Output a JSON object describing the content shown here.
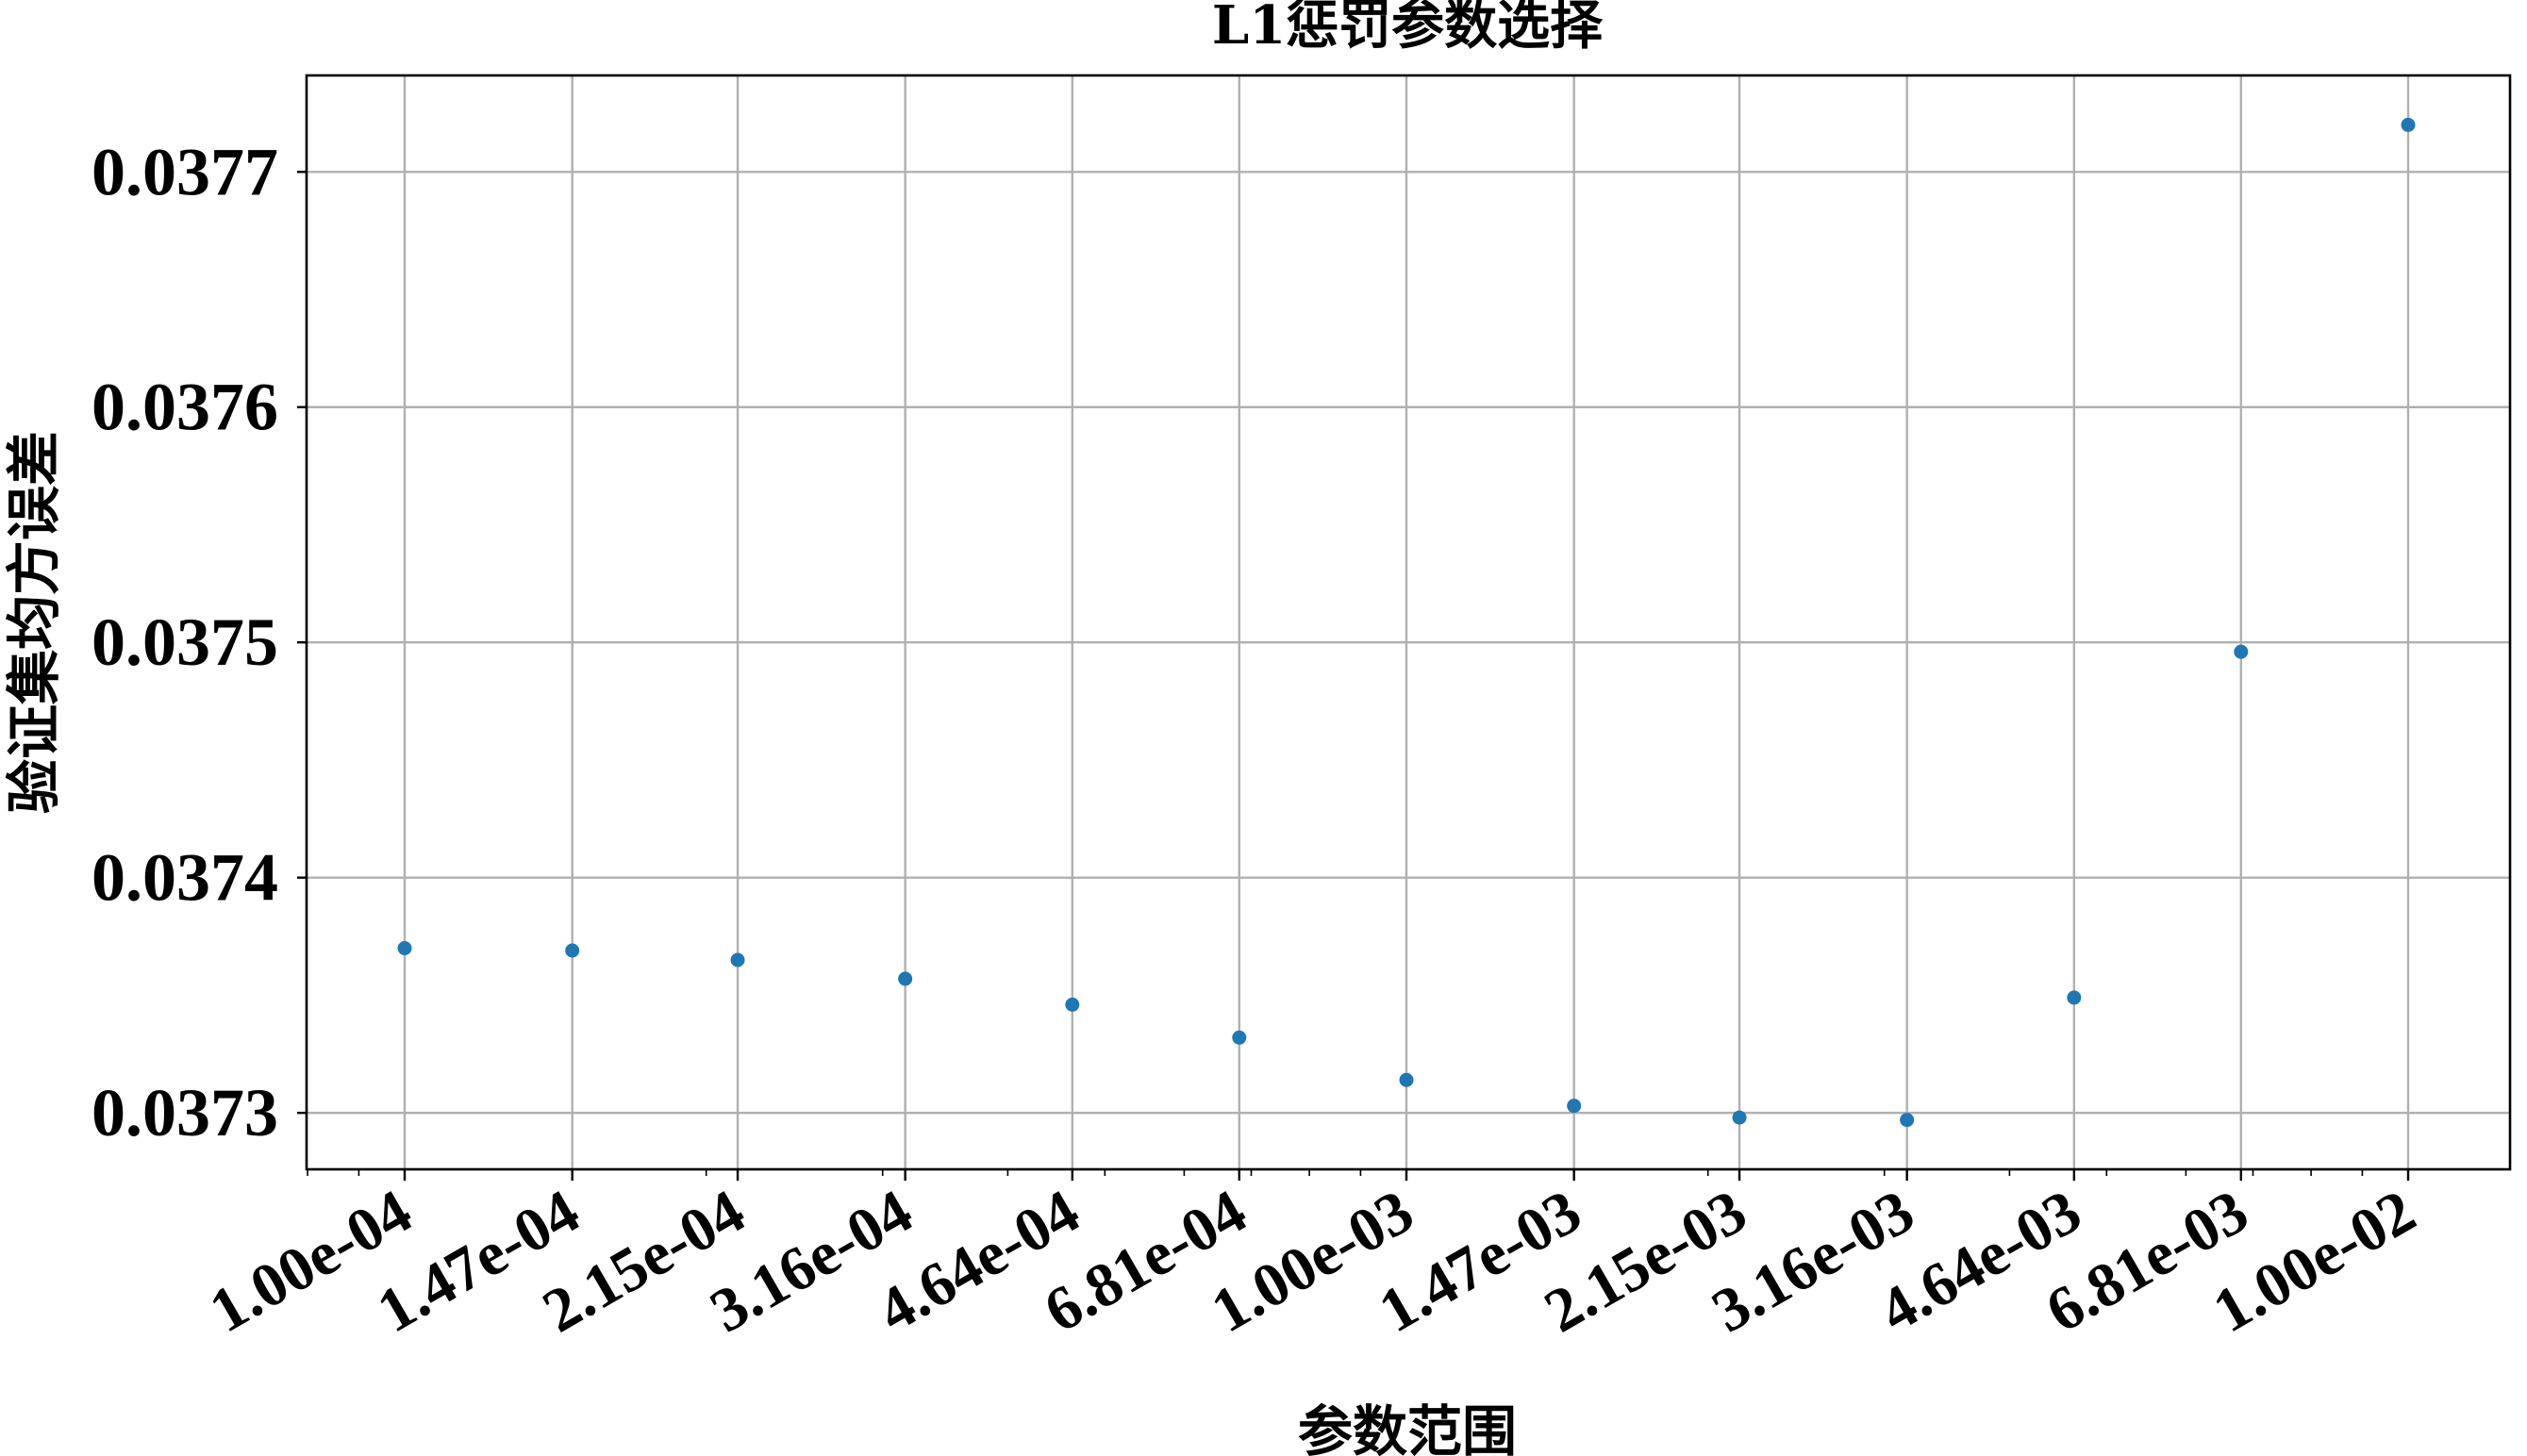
{
  "chart_data": {
    "type": "scatter",
    "title": "L1惩罚参数选择",
    "xlabel": "参数范围",
    "ylabel": "验证集均方误差",
    "x": [
      "1.00e-04",
      "1.47e-04",
      "2.15e-04",
      "3.16e-04",
      "4.64e-04",
      "6.81e-04",
      "1.00e-03",
      "1.47e-03",
      "2.15e-03",
      "3.16e-03",
      "4.64e-03",
      "6.81e-03",
      "1.00e-02"
    ],
    "x_scale": "log",
    "series": [
      {
        "values": [
          0.03737,
          0.037369,
          0.037365,
          0.037357,
          0.037346,
          0.037332,
          0.037314,
          0.037303,
          0.037298,
          0.037297,
          0.037349,
          0.037496,
          0.03772
        ],
        "color": "#1f77b4"
      }
    ],
    "y_ticks": [
      "0.0373",
      "0.0374",
      "0.0375",
      "0.0376",
      "0.0377"
    ],
    "ylim": [
      0.037276,
      0.037741
    ],
    "grid": true
  }
}
